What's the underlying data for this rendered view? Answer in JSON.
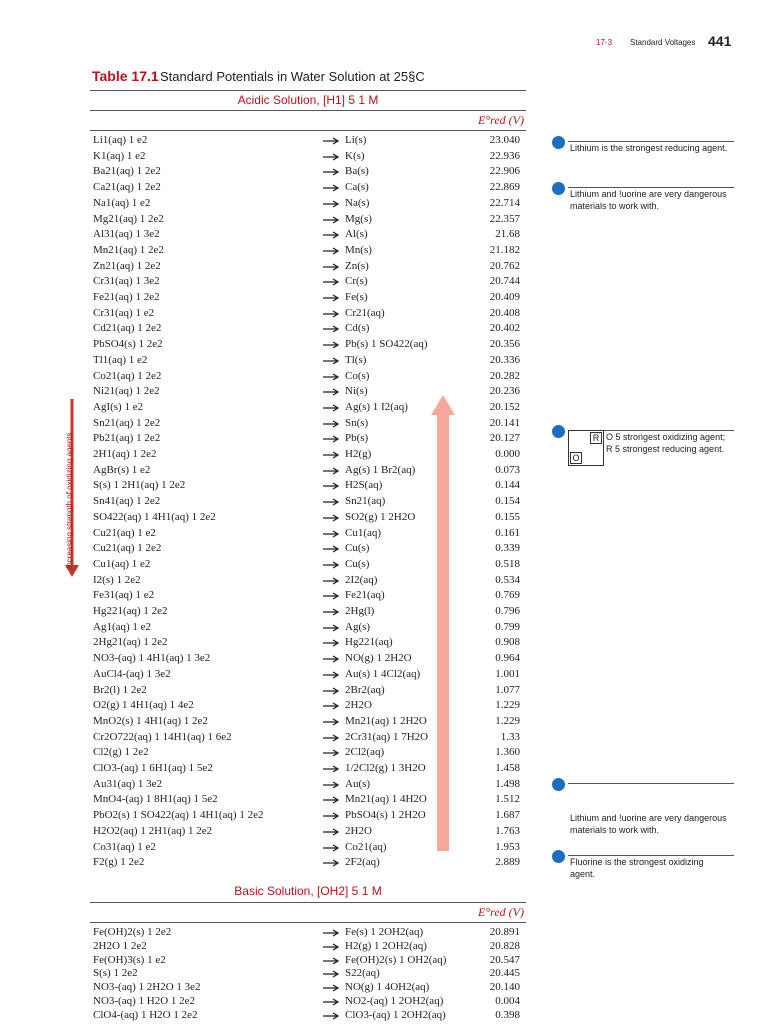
{
  "header": {
    "section": "17-3",
    "running_title": "Standard Voltages",
    "page_number": "441"
  },
  "table": {
    "label": "Table 17.1",
    "caption": "Standard Potentials in Water Solution at 25§C",
    "acidic_heading": "Acidic Solution, [H1] 5 1 M",
    "potential_heading": "E°red (V)",
    "side_label": "Increasing strength of oxidizing agents",
    "acidic_rows": [
      [
        "Li1(aq) 1 e2",
        "Li(s)",
        "23.040"
      ],
      [
        "K1(aq) 1 e2",
        "K(s)",
        "22.936"
      ],
      [
        "Ba21(aq) 1 2e2",
        "Ba(s)",
        "22.906"
      ],
      [
        "Ca21(aq) 1 2e2",
        "Ca(s)",
        "22.869"
      ],
      [
        "Na1(aq) 1 e2",
        "Na(s)",
        "22.714"
      ],
      [
        "Mg21(aq) 1 2e2",
        "Mg(s)",
        "22.357"
      ],
      [
        "Al31(aq) 1 3e2",
        "Al(s)",
        "21.68"
      ],
      [
        "Mn21(aq) 1 2e2",
        "Mn(s)",
        "21.182"
      ],
      [
        "Zn21(aq) 1 2e2",
        "Zn(s)",
        "20.762"
      ],
      [
        "Cr31(aq) 1 3e2",
        "Cr(s)",
        "20.744"
      ],
      [
        "Fe21(aq) 1 2e2",
        "Fe(s)",
        "20.409"
      ],
      [
        "Cr31(aq) 1 e2",
        "Cr21(aq)",
        "20.408"
      ],
      [
        "Cd21(aq) 1 2e2",
        "Cd(s)",
        "20.402"
      ],
      [
        "PbSO4(s) 1 2e2",
        "Pb(s) 1 SO422(aq)",
        "20.356"
      ],
      [
        "Tl1(aq) 1 e2",
        "Tl(s)",
        "20.336"
      ],
      [
        "Co21(aq) 1 2e2",
        "Co(s)",
        "20.282"
      ],
      [
        "Ni21(aq) 1 2e2",
        "Ni(s)",
        "20.236"
      ],
      [
        "AgI(s) 1 e2",
        "Ag(s) 1 I2(aq)",
        "20.152"
      ],
      [
        "Sn21(aq) 1 2e2",
        "Sn(s)",
        "20.141"
      ],
      [
        "Pb21(aq) 1 2e2",
        "Pb(s)",
        "20.127"
      ],
      [
        "2H1(aq) 1 2e2",
        "H2(g)",
        "0.000"
      ],
      [
        "AgBr(s) 1 e2",
        "Ag(s) 1 Br2(aq)",
        "0.073"
      ],
      [
        "S(s) 1 2H1(aq) 1 2e2",
        "H2S(aq)",
        "0.144"
      ],
      [
        "Sn41(aq) 1 2e2",
        "Sn21(aq)",
        "0.154"
      ],
      [
        "SO422(aq) 1 4H1(aq) 1 2e2",
        "SO2(g) 1 2H2O",
        "0.155"
      ],
      [
        "Cu21(aq) 1 e2",
        "Cu1(aq)",
        "0.161"
      ],
      [
        "Cu21(aq) 1 2e2",
        "Cu(s)",
        "0.339"
      ],
      [
        "Cu1(aq) 1 e2",
        "Cu(s)",
        "0.518"
      ],
      [
        "I2(s) 1 2e2",
        "2I2(aq)",
        "0.534"
      ],
      [
        "Fe31(aq) 1 e2",
        "Fe21(aq)",
        "0.769"
      ],
      [
        "Hg221(aq) 1 2e2",
        "2Hg(l)",
        "0.796"
      ],
      [
        "Ag1(aq) 1 e2",
        "Ag(s)",
        "0.799"
      ],
      [
        "2Hg21(aq) 1 2e2",
        "Hg221(aq)",
        "0.908"
      ],
      [
        "NO3-(aq) 1 4H1(aq) 1 3e2",
        "NO(g) 1 2H2O",
        "0.964"
      ],
      [
        "AuCl4-(aq) 1 3e2",
        "Au(s) 1 4Cl2(aq)",
        "1.001"
      ],
      [
        "Br2(l) 1 2e2",
        "2Br2(aq)",
        "1.077"
      ],
      [
        "O2(g) 1 4H1(aq) 1 4e2",
        "2H2O",
        "1.229"
      ],
      [
        "MnO2(s) 1 4H1(aq) 1 2e2",
        "Mn21(aq) 1 2H2O",
        "1.229"
      ],
      [
        "Cr2O722(aq) 1 14H1(aq) 1 6e2",
        "2Cr31(aq) 1 7H2O",
        "1.33"
      ],
      [
        "Cl2(g) 1 2e2",
        "2Cl2(aq)",
        "1.360"
      ],
      [
        "ClO3-(aq) 1 6H1(aq) 1 5e2",
        "1/2Cl2(g) 1 3H2O",
        "1.458"
      ],
      [
        "Au31(aq) 1 3e2",
        "Au(s)",
        "1.498"
      ],
      [
        "MnO4-(aq) 1 8H1(aq) 1 5e2",
        "Mn21(aq) 1 4H2O",
        "1.512"
      ],
      [
        "PbO2(s) 1 SO422(aq) 1 4H1(aq) 1 2e2",
        "PbSO4(s) 1 2H2O",
        "1.687"
      ],
      [
        "H2O2(aq) 1 2H1(aq) 1 2e2",
        "2H2O",
        "1.763"
      ],
      [
        "Co31(aq) 1 e2",
        "Co21(aq)",
        "1.953"
      ],
      [
        "F2(g) 1 2e2",
        "2F2(aq)",
        "2.889"
      ]
    ],
    "basic_heading": "Basic Solution, [OH2] 5 1 M",
    "basic_potential_heading": "E°red (V)",
    "basic_rows": [
      [
        "Fe(OH)2(s) 1 2e2",
        "Fe(s) 1 2OH2(aq)",
        "20.891"
      ],
      [
        "2H2O 1 2e2",
        "H2(g) 1 2OH2(aq)",
        "20.828"
      ],
      [
        "Fe(OH)3(s) 1 e2",
        "Fe(OH)2(s) 1 OH2(aq)",
        "20.547"
      ],
      [
        "S(s) 1 2e2",
        "S22(aq)",
        "20.445"
      ],
      [
        "NO3-(aq) 1 2H2O 1 3e2",
        "NO(g) 1 4OH2(aq)",
        "20.140"
      ],
      [
        "NO3-(aq) 1 H2O 1 2e2",
        "NO2-(aq) 1 2OH2(aq)",
        "0.004"
      ],
      [
        "ClO4-(aq) 1 H2O 1 2e2",
        "ClO3-(aq) 1 2OH2(aq)",
        "0.398"
      ]
    ]
  },
  "notes": [
    "Lithium is the strongest reducing agent.",
    "Lithium and !uorine are very dangerous materials to work with.",
    "O 5 strongest oxidizing agent; R 5 strongest reducing agent.",
    "Lithium and !uorine are very dangerous materials to work with.",
    "Fluorine is the strongest oxidizing agent."
  ],
  "note_key": {
    "r": "R",
    "o": "O"
  }
}
